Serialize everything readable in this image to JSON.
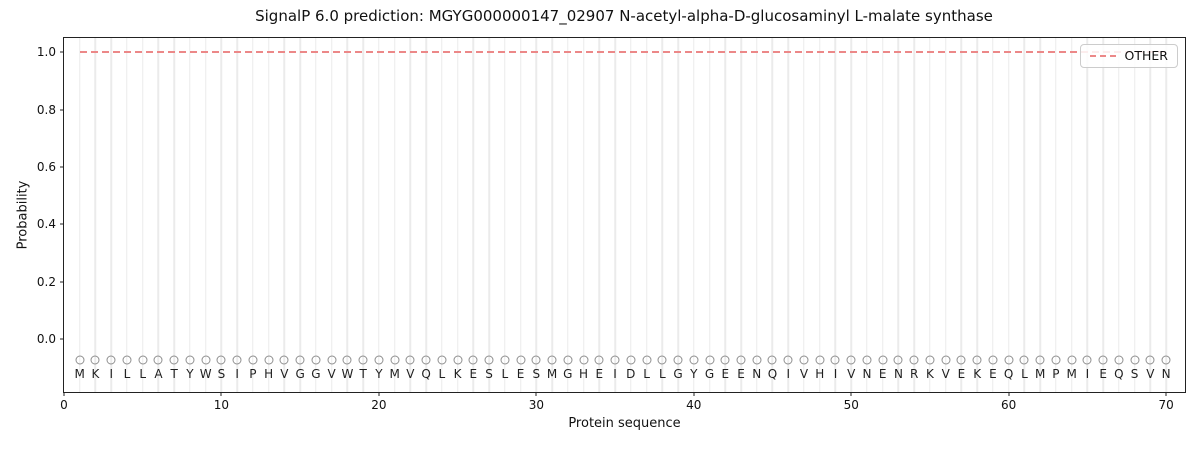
{
  "chart_data": {
    "type": "line",
    "title": "SignalP 6.0 prediction: MGYG000000147_02907 N-acetyl-alpha-D-glucosaminyl L-malate synthase",
    "xlabel": "Protein sequence",
    "ylabel": "Probability",
    "xlim": [
      0,
      71.2
    ],
    "ylim": [
      -0.185,
      1.05
    ],
    "x_ticks": [
      0,
      10,
      20,
      30,
      40,
      50,
      60,
      70
    ],
    "y_ticks": [
      "0.0",
      "0.2",
      "0.4",
      "0.6",
      "0.8",
      "1.0"
    ],
    "grid": "vertical gridline at each residue position",
    "legend_position": "upper right",
    "legend": {
      "entries": [
        {
          "label": "OTHER",
          "color": "#ec8888",
          "line_style": "dashed"
        }
      ]
    },
    "sequence": "MKILLATYWSIPHVGGVWTYMVQLKESLESMGHEIDLLGYGEENQIVHIVNENRKVEKEQLMPMIEQSVN",
    "sequence_start_position": 1,
    "sequence_end_position": 70,
    "series": [
      {
        "name": "OTHER",
        "style": "dashed",
        "color": "#ec8888",
        "x_start": 1,
        "x_end": 70,
        "y_value": 1.0
      }
    ],
    "marker_row": {
      "glyph": "open-circle",
      "y": -0.072,
      "color": "#8f8f8f"
    },
    "letter_row_y": -0.122
  },
  "colors": {
    "background": "#ffffff",
    "grid": "#ebebeb",
    "spine": "#222222",
    "other_line": "#ec8888",
    "text": "#111111"
  }
}
